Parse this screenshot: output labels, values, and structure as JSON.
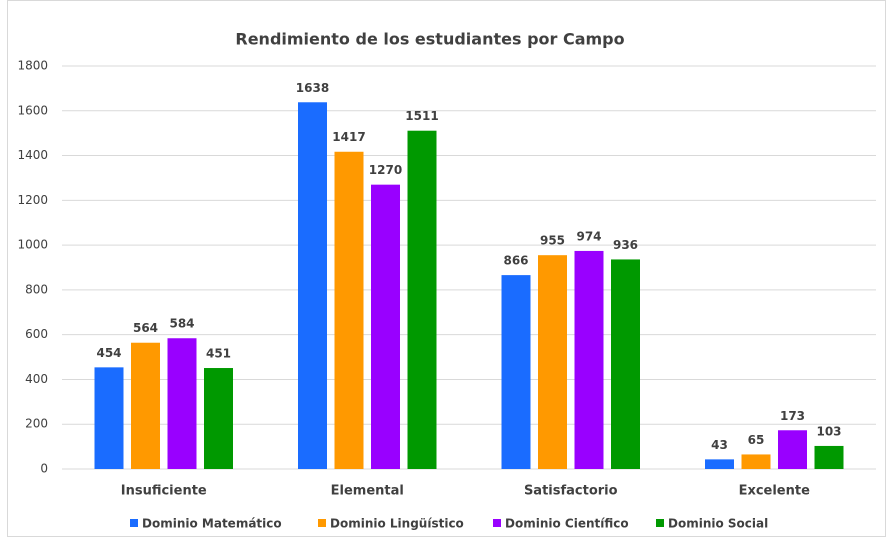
{
  "chart_data": {
    "type": "bar",
    "title": "Rendimiento de los estudiantes por Campo",
    "categories": [
      "Insuficiente",
      "Elemental",
      "Satisfactorio",
      "Excelente"
    ],
    "series": [
      {
        "name": "Dominio Matemático",
        "color": "#1a6cff",
        "values": [
          454,
          1638,
          866,
          43
        ]
      },
      {
        "name": "Dominio Lingüístico",
        "color": "#ff9900",
        "values": [
          564,
          1417,
          955,
          65
        ]
      },
      {
        "name": "Dominio Científico",
        "color": "#9900ff",
        "values": [
          584,
          1270,
          974,
          173
        ]
      },
      {
        "name": "Dominio Social",
        "color": "#009900",
        "values": [
          451,
          1511,
          936,
          103
        ]
      }
    ],
    "ylim": [
      0,
      1800
    ],
    "yticks": [
      0,
      200,
      400,
      600,
      800,
      1000,
      1200,
      1400,
      1600,
      1800
    ],
    "grid": true,
    "legend": "bottom"
  }
}
